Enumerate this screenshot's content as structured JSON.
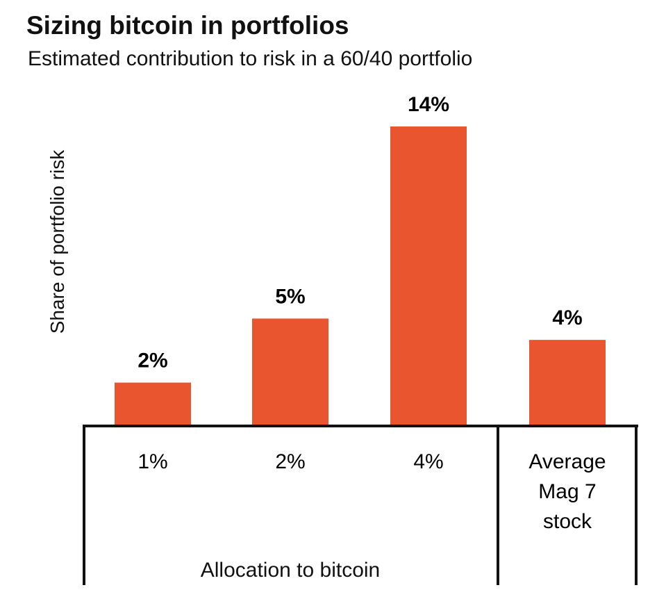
{
  "chart_data": {
    "type": "bar",
    "title": "Sizing bitcoin in portfolios",
    "subtitle": "Estimated contribution to risk in a 60/40 portfolio",
    "ylabel": "Share of portfolio risk",
    "xlabel": "Allocation to bitcoin",
    "categories": [
      "1%",
      "2%",
      "4%",
      "Average Mag 7 stock"
    ],
    "category_lines": [
      [
        "1%"
      ],
      [
        "2%"
      ],
      [
        "4%"
      ],
      [
        "Average",
        "Mag 7",
        "stock"
      ]
    ],
    "values": [
      2,
      5,
      14,
      4
    ],
    "data_labels": [
      "2%",
      "5%",
      "14%",
      "4%"
    ],
    "ylim": [
      0,
      14
    ],
    "grid": false,
    "bar_color": "#E8552F"
  }
}
